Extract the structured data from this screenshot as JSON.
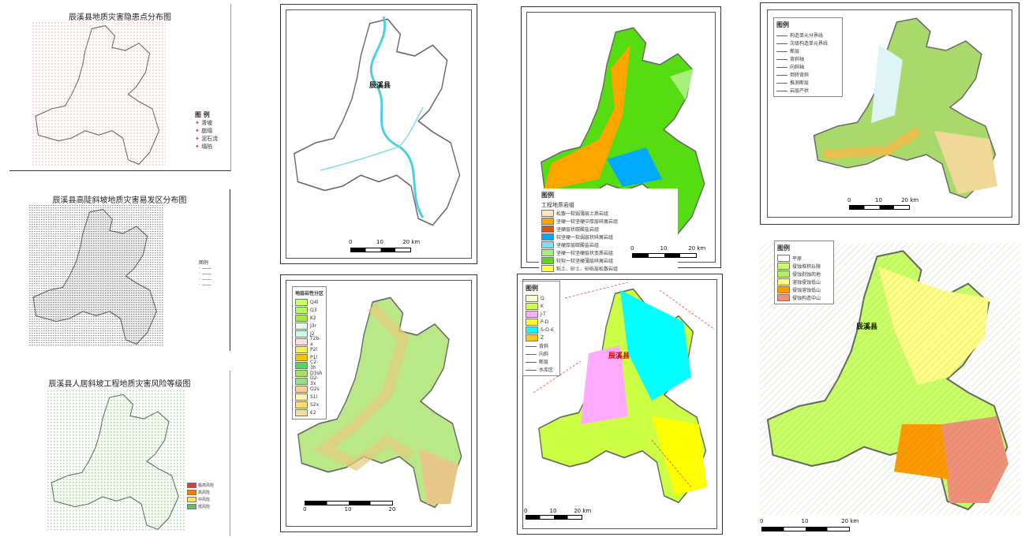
{
  "panels": {
    "hazard_points": {
      "title": "辰溪县地质灾害隐患点分布图",
      "legend_title": "图 例",
      "legend": [
        "滑坡",
        "崩塌",
        "泥石流",
        "塌陷"
      ],
      "color": "#e53935"
    },
    "slopes": {
      "title": "辰溪县高陡斜坡地质灾害易发区分布图",
      "legend_title": "图例",
      "color": "#111111"
    },
    "risk": {
      "title": "辰溪县人居斜坡工程地质灾害风险等级图",
      "legend": [
        "极高风险",
        "高风险",
        "中风险",
        "低风险"
      ],
      "colors": [
        "#e53935",
        "#f57c00",
        "#ffeb3b",
        "#66bb6a"
      ]
    },
    "hydrology": {
      "place": "辰溪县",
      "scale": [
        "0",
        "10",
        "20 km"
      ],
      "color": "#4dd0e1"
    },
    "strata": {
      "legend_title": "地层岩性分区",
      "legend": [
        "Q4l",
        "Q3",
        "K2",
        "J3r",
        "J2",
        "T2b-a",
        "P2l",
        "P1l",
        "C2-3h",
        "D3sh",
        "D2-3x",
        "O2s",
        "S1l",
        "S2x",
        "€2"
      ],
      "colors": [
        "#ccff66",
        "#b2ff59",
        "#a5e84a",
        "#e8fde8",
        "#d0fbe8",
        "#fde0e0",
        "#f0f060",
        "#f5c000",
        "#5ecf6a",
        "#aadd66",
        "#99e080",
        "#ffcc99",
        "#fff3b0",
        "#ffe066",
        "#f0e0a0"
      ],
      "scale": [
        "0",
        "10",
        "20"
      ]
    },
    "engineering": {
      "legend_title": "图例",
      "legend_subtitle": "工程地质岩组",
      "legend": [
        "松散一软弱薄层土质岩组",
        "坚硬一较坚硬中厚层碎屑岩组",
        "坚硬层状碳酸盐岩组",
        "较坚硬一软弱层状碎屑岩组",
        "坚硬厚层碳酸盐岩组",
        "坚硬一较坚硬层状变质岩组",
        "较软一较坚硬薄层碎屑岩组",
        "粘土、砂土、砂砾层松散岩组"
      ],
      "colors": [
        "#ffe4b5",
        "#ffa500",
        "#e65100",
        "#00aaff",
        "#80deea",
        "#a5f07a",
        "#55dd11",
        "#ffff44"
      ],
      "scale": [
        "0",
        "10",
        "20 km"
      ]
    },
    "geology": {
      "legend_title": "图例",
      "legend": [
        "Q",
        "K",
        "J-T",
        "P-D",
        "S-O-€",
        "Z",
        "背斜",
        "向斜",
        "断层",
        "水库区"
      ],
      "colors": [
        "#ffffc0",
        "#ccff44",
        "#ffaaff",
        "#ffff00",
        "#00ffff",
        "#ffcc00"
      ],
      "place": "辰溪县",
      "scale": [
        "0",
        "10",
        "20 km"
      ]
    },
    "tectonic": {
      "legend_title": "图例",
      "legend": [
        "构造单元分界线",
        "次级构造单元界线",
        "断层",
        "背斜轴",
        "向斜轴",
        "倒转背斜",
        "推测断层",
        "岩层产状"
      ],
      "scale": [
        "0",
        "10",
        "20 km"
      ]
    },
    "landform": {
      "legend_title": "图例",
      "legend": [
        "平原",
        "侵蚀堆积丘陵",
        "侵蚀剥蚀岗地",
        "溶蚀侵蚀低山",
        "侵蚀溶蚀低山",
        "侵蚀构造中山"
      ],
      "colors": [
        "#ffffff",
        "#c8ff66",
        "#b0f060",
        "#ffff88",
        "#ff9900",
        "#f0907a"
      ],
      "place": "辰溪县",
      "scale": [
        "0",
        "10",
        "20 km"
      ]
    }
  }
}
